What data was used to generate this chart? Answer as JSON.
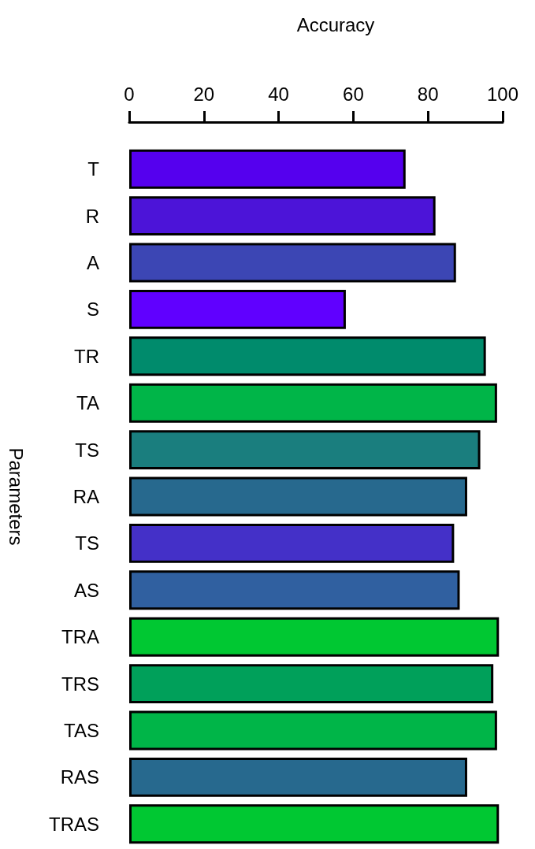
{
  "chart_data": {
    "type": "bar",
    "orientation": "horizontal",
    "xlabel": "Accuracy",
    "ylabel": "Parameters",
    "categories": [
      "T",
      "R",
      "A",
      "S",
      "TR",
      "TA",
      "TS",
      "RA",
      "TS",
      "AS",
      "TRA",
      "TRS",
      "TAS",
      "RAS",
      "TRAS"
    ],
    "values": [
      74,
      82,
      87.5,
      58,
      95.5,
      98.5,
      94,
      90.5,
      87,
      88.5,
      99,
      97.5,
      98.5,
      90.5,
      99
    ],
    "colors": [
      "#5500ee",
      "#4c14d8",
      "#3c46b4",
      "#6000ff",
      "#008b6c",
      "#00b548",
      "#1a7e7e",
      "#27698e",
      "#4430c8",
      "#3060a0",
      "#00c832",
      "#00a05a",
      "#00b548",
      "#27698e",
      "#00c832"
    ],
    "xlim": [
      0,
      100
    ],
    "xticks": [
      0,
      20,
      40,
      60,
      80,
      100
    ]
  }
}
